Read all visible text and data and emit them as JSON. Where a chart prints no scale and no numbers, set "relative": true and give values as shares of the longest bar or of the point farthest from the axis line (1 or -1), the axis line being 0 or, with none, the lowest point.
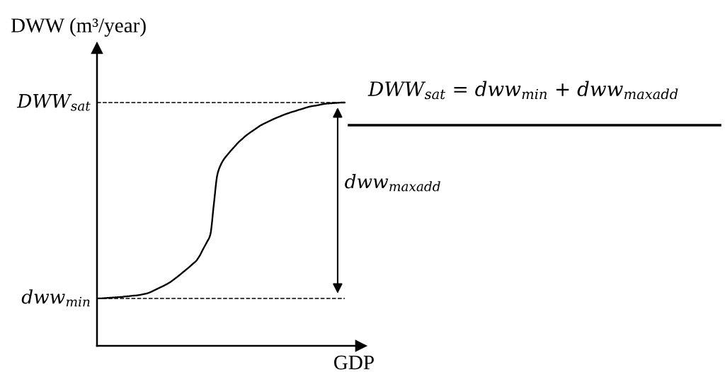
{
  "chart_data": {
    "type": "line",
    "relative": true,
    "ylabel": "DWW (m³/year)",
    "xlabel": "GDP",
    "categories": [
      null,
      null,
      null,
      null,
      null,
      null,
      null,
      null,
      null,
      null,
      null,
      null,
      null,
      null,
      null,
      null,
      null,
      null,
      null,
      null,
      null,
      null,
      null,
      null,
      null,
      null,
      null,
      null,
      null,
      null,
      null,
      null,
      null,
      null,
      null,
      null,
      null,
      null,
      null,
      null,
      null,
      null,
      null,
      null,
      null,
      null,
      null,
      null,
      null,
      null,
      null,
      null,
      null,
      null,
      null,
      null,
      null,
      null,
      null,
      null,
      null,
      null,
      null,
      null,
      null,
      null,
      null,
      null,
      null,
      null,
      null
    ],
    "series": [
      {
        "color": "#000000",
        "values": [
          0.195,
          0.195,
          0.196,
          0.197,
          0.198,
          0.199,
          0.2,
          0.201,
          0.203,
          0.204,
          0.206,
          0.207,
          0.209,
          0.212,
          0.215,
          0.22,
          0.227,
          0.234,
          0.241,
          0.248,
          0.256,
          0.265,
          0.276,
          0.287,
          0.299,
          0.311,
          0.323,
          0.336,
          0.349,
          0.37,
          0.398,
          0.425,
          0.456,
          0.58,
          0.703,
          0.745,
          0.77,
          0.788,
          0.805,
          0.821,
          0.837,
          0.85,
          0.863,
          0.874,
          0.884,
          0.894,
          0.904,
          0.912,
          0.919,
          0.926,
          0.933,
          0.939,
          0.945,
          0.951,
          0.956,
          0.961,
          0.965,
          0.97,
          0.974,
          0.979,
          0.983,
          0.986,
          0.988,
          0.991,
          0.994,
          0.996,
          0.997,
          0.998,
          0.999,
          1,
          1
        ]
      }
    ],
    "line_style": "solid",
    "marker": "none",
    "ref_lines": [
      {
        "axis": "y",
        "value": 0.195,
        "label": "dww$_{min}$",
        "line_style": "dashed",
        "color": "#000000"
      },
      {
        "axis": "y",
        "value": 1,
        "label": "DWW$_{sat}$",
        "line_style": "dashed",
        "color": "#000000"
      }
    ],
    "annotations": [
      "DWW$_{sat}$ = dww$_{min}$ + dww$_{maxadd}$",
      "dww$_{maxadd}$"
    ]
  }
}
